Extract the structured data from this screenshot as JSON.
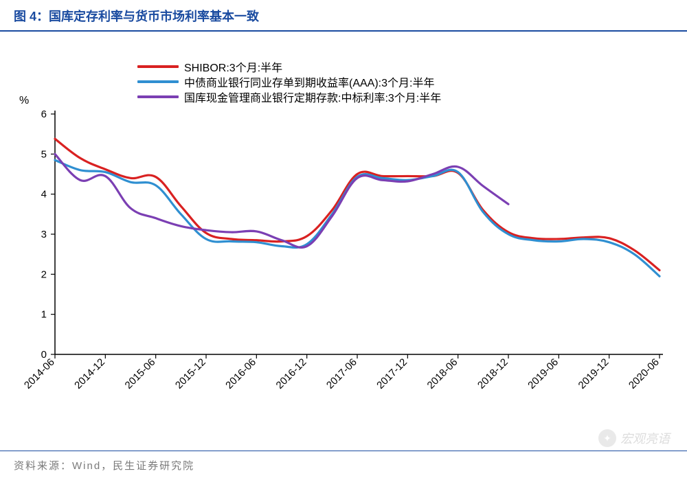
{
  "title_prefix": "图 4：",
  "title_text": "国库定存利率与货币市场利率基本一致",
  "y_unit": "%",
  "footer_text": "资料来源：Wind，民生证券研究院",
  "watermark_text": "宏观亮语",
  "chart": {
    "type": "line",
    "background_color": "#ffffff",
    "grid_on": false,
    "axis_color": "#000000",
    "line_width": 3.2,
    "title_color": "#1a4ba0",
    "border_color": "#1a4ba0",
    "ylim": [
      0,
      6
    ],
    "ytick_step": 1,
    "y_ticks": [
      0,
      1,
      2,
      3,
      4,
      5,
      6
    ],
    "x_ticks": [
      "2014-06",
      "2014-12",
      "2015-06",
      "2015-12",
      "2016-06",
      "2016-12",
      "2017-06",
      "2017-12",
      "2018-06",
      "2018-12",
      "2019-06",
      "2019-12",
      "2020-06"
    ],
    "x_index": [
      0,
      1,
      2,
      3,
      4,
      5,
      6,
      7,
      8,
      9,
      10,
      11,
      12
    ],
    "legend_position": "top-left",
    "label_fontsize": 16,
    "tick_fontsize": 15,
    "series": [
      {
        "name": "SHIBOR:3个月:半年",
        "color": "#d92121",
        "values": [
          5.38,
          4.62,
          4.43,
          3.03,
          2.85,
          2.95,
          4.5,
          4.45,
          4.53,
          3.05,
          2.88,
          2.9,
          2.1
        ]
      },
      {
        "name": "中债商业银行同业存单到期收益率(AAA):3个月:半年",
        "color": "#2f8fd1",
        "values": [
          4.85,
          4.55,
          4.22,
          2.88,
          2.8,
          2.75,
          4.43,
          4.35,
          4.55,
          3.0,
          2.82,
          2.8,
          1.95
        ]
      },
      {
        "name": "国库现金管理商业银行定期存款:中标利率:3个月:半年",
        "color": "#7b3fb3",
        "values": [
          5.0,
          4.45,
          3.4,
          3.1,
          3.07,
          2.7,
          4.4,
          4.32,
          4.68,
          3.75,
          null,
          null,
          null
        ]
      }
    ],
    "sub_points": {
      "0": {
        "shibor": 4.9,
        "ncd": 4.6,
        "treasury": 4.35
      },
      "1": {
        "shibor": 4.4,
        "ncd": 4.3,
        "treasury": 3.65
      },
      "2": {
        "shibor": 3.7,
        "ncd": 3.5,
        "treasury": 3.2
      },
      "3": {
        "shibor": 2.88,
        "ncd": 2.82,
        "treasury": 3.05
      },
      "4": {
        "shibor": 2.82,
        "ncd": 2.7,
        "treasury": 2.85
      },
      "5": {
        "shibor": 3.6,
        "ncd": 3.5,
        "treasury": 3.45
      },
      "6": {
        "shibor": 4.45,
        "ncd": 4.4,
        "treasury": 4.35
      },
      "7": {
        "shibor": 4.45,
        "ncd": 4.45,
        "treasury": 4.5
      },
      "8": {
        "shibor": 3.6,
        "ncd": 3.55,
        "treasury": 4.2
      },
      "9": {
        "shibor": 2.9,
        "ncd": 2.85
      },
      "10": {
        "shibor": 2.92,
        "ncd": 2.88
      },
      "11": {
        "shibor": 2.6,
        "ncd": 2.5
      }
    }
  }
}
